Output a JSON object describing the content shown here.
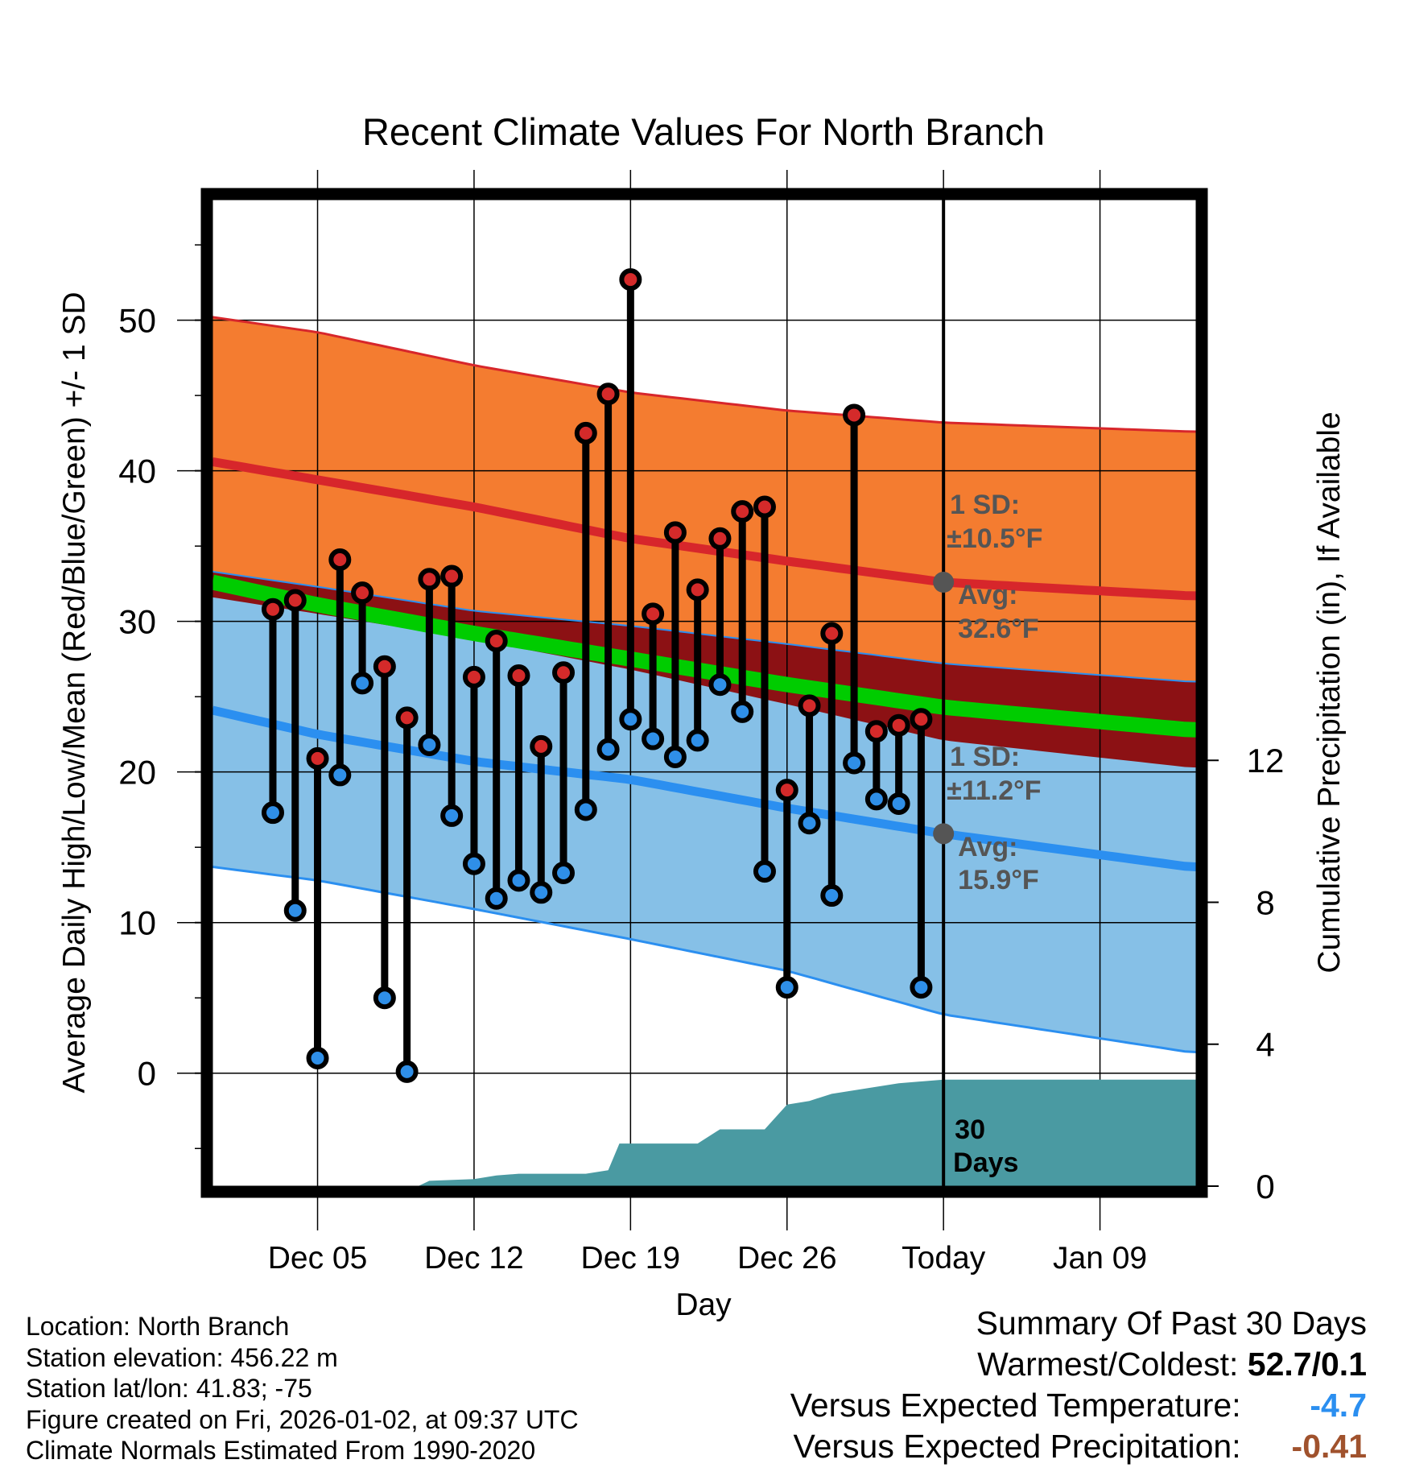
{
  "chart_data": {
    "type": "line",
    "title": "Recent Climate Values For North Branch",
    "xlabel": "Day",
    "ylabel": "Average Daily High/Low/Mean (Red/Blue/Green) +/- 1 SD",
    "y2label": "Cumulative Precipitation (in), If Available",
    "ylim": [
      -7.5,
      58
    ],
    "y2lim": [
      0,
      27.8
    ],
    "xlim": [
      0.3,
      44.3
    ],
    "grid": true,
    "x_ticks": [
      {
        "day": 5,
        "label": "Dec 05"
      },
      {
        "day": 12,
        "label": "Dec 12"
      },
      {
        "day": 19,
        "label": "Dec 19"
      },
      {
        "day": 26,
        "label": "Dec 26"
      },
      {
        "day": 33,
        "label": "Today"
      },
      {
        "day": 40,
        "label": "Jan 09"
      }
    ],
    "y_ticks": [
      0,
      10,
      20,
      30,
      40,
      50
    ],
    "y2_ticks": [
      0,
      4,
      8,
      12
    ],
    "today_day": 33,
    "today_label": "30 Days",
    "normals": {
      "days": [
        0.3,
        5,
        12,
        19,
        26,
        33,
        44
      ],
      "high_mean": [
        40.6,
        39.4,
        37.6,
        35.5,
        34.0,
        32.6,
        31.7
      ],
      "high_upper": [
        50.2,
        49.2,
        47.0,
        45.2,
        44.0,
        43.2,
        42.6
      ],
      "high_lower": [
        31.6,
        30.5,
        28.8,
        26.8,
        24.5,
        22.1,
        20.3
      ],
      "low_mean": [
        24.1,
        22.5,
        20.7,
        19.5,
        17.6,
        15.9,
        13.7
      ],
      "low_upper": [
        33.3,
        32.3,
        30.7,
        29.7,
        28.5,
        27.2,
        26.0
      ],
      "low_lower": [
        13.7,
        12.8,
        10.9,
        8.9,
        6.8,
        3.9,
        1.4
      ],
      "mean": [
        32.6,
        31.1,
        29.2,
        27.5,
        25.8,
        24.3,
        22.8
      ]
    },
    "series": [
      {
        "name": "High",
        "days": [
          3,
          4,
          5,
          6,
          7,
          8,
          9,
          10,
          11,
          12,
          13,
          14,
          15,
          16,
          17,
          18,
          19,
          20,
          21,
          22,
          23,
          24,
          25,
          26,
          27,
          28,
          29,
          30,
          31,
          32
        ],
        "values": [
          30.8,
          31.4,
          20.9,
          34.1,
          31.9,
          27.0,
          23.6,
          32.8,
          33.0,
          26.3,
          28.7,
          26.4,
          21.7,
          26.6,
          42.5,
          45.1,
          52.7,
          30.5,
          35.9,
          32.1,
          35.5,
          37.3,
          37.6,
          18.8,
          24.4,
          29.2,
          43.7,
          22.7,
          23.1,
          23.5
        ]
      },
      {
        "name": "Low",
        "days": [
          3,
          4,
          5,
          6,
          7,
          8,
          9,
          10,
          11,
          12,
          13,
          14,
          15,
          16,
          17,
          18,
          19,
          20,
          21,
          22,
          23,
          24,
          25,
          26,
          27,
          28,
          29,
          30,
          31,
          32
        ],
        "values": [
          17.3,
          10.8,
          1.0,
          19.8,
          25.9,
          5.0,
          0.1,
          21.8,
          17.1,
          13.9,
          11.6,
          12.8,
          12.0,
          13.3,
          17.5,
          21.5,
          23.5,
          22.2,
          21.0,
          22.1,
          25.8,
          24.0,
          13.4,
          5.7,
          16.6,
          11.8,
          20.6,
          18.2,
          17.9,
          5.7
        ]
      },
      {
        "name": "Cumulative Precipitation",
        "days": [
          0.3,
          7.5,
          8.5,
          9.0,
          9.5,
          10.0,
          12.0,
          13.0,
          14.0,
          16.0,
          17.0,
          18.0,
          18.5,
          19.0,
          20.0,
          21.0,
          22.0,
          23.0,
          24.0,
          25.0,
          26.0,
          27.0,
          28.0,
          29.0,
          30.0,
          31.0,
          32.0,
          33.0,
          44.3
        ],
        "values": [
          0,
          0,
          0,
          0,
          0,
          0.15,
          0.2,
          0.3,
          0.35,
          0.35,
          0.35,
          0.45,
          1.2,
          1.2,
          1.2,
          1.2,
          1.2,
          1.6,
          1.6,
          1.6,
          2.3,
          2.4,
          2.6,
          2.7,
          2.8,
          2.9,
          2.95,
          3.0,
          3.0
        ]
      }
    ],
    "annotations": {
      "high_sd_label": "1 SD:",
      "high_sd_value": "±10.5°F",
      "high_avg_label": "Avg:",
      "high_avg_value": "32.6°F",
      "high_avg_point": 32.6,
      "low_sd_label": "1 SD:",
      "low_sd_value": "±11.2°F",
      "low_avg_label": "Avg:",
      "low_avg_value": "15.9°F",
      "low_avg_point": 15.9
    },
    "colors": {
      "high_band": "#f47c30",
      "high_line": "#d7262b",
      "low_band": "#86c0e7",
      "low_line": "#2b8ff0",
      "overlap_band": "#8c1114",
      "mean_line": "#00cc00",
      "precip": "#4a9aa2",
      "high_marker": "#d42a2a",
      "low_marker": "#2f8fe8",
      "annotation": "#555555"
    }
  },
  "info": {
    "location": "Location: North Branch",
    "elevation": "Station elevation: 456.22 m",
    "latlon": "Station lat/lon: 41.83; -75",
    "created": "Figure created on Fri, 2026-01-02, at 09:37 UTC",
    "normals": "Climate Normals Estimated From 1990-2020"
  },
  "summary": {
    "title": "Summary Of Past 30 Days",
    "warmest_label": "Warmest/Coldest:",
    "warmest_value": "52.7",
    "coldest_value": "0.1",
    "temp_label": "Versus Expected Temperature:",
    "temp_value": "-4.7",
    "temp_color": "#2b8ff0",
    "precip_label": "Versus Expected Precipitation:",
    "precip_value": "-0.41",
    "precip_color": "#a0522d"
  }
}
